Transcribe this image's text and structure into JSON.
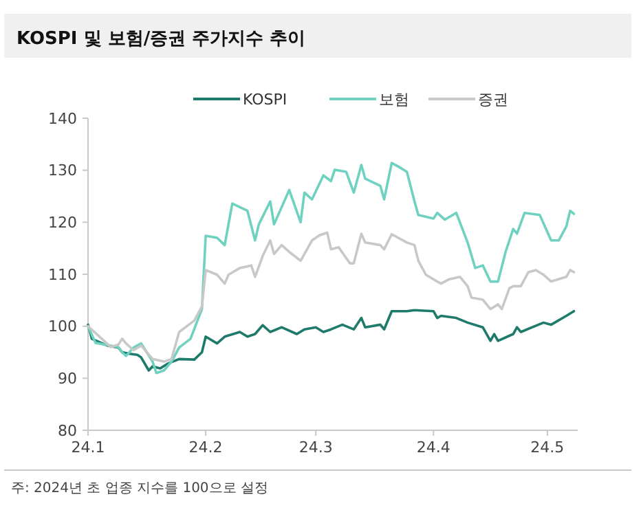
{
  "chart_data": {
    "type": "line",
    "title": "KOSPI 및 보험/증권 주가지수 추이",
    "annotations": [
      "주: 2024년 초 업종 지수를 100으로 설정"
    ],
    "xlim": [
      "2024-01-01",
      "2024-05-09"
    ],
    "xticks": [
      {
        "value": "2024-01-01",
        "label": "24.1"
      },
      {
        "value": "2024-02-01",
        "label": "24.2"
      },
      {
        "value": "2024-03-01",
        "label": "24.3"
      },
      {
        "value": "2024-04-01",
        "label": "24.4"
      },
      {
        "value": "2024-05-01",
        "label": "24.5"
      }
    ],
    "ylim": [
      80,
      140
    ],
    "yticks": [
      80,
      90,
      100,
      110,
      120,
      130,
      140
    ],
    "grid": false,
    "legend": "top",
    "marker": "none",
    "line_style": "solid",
    "series": [
      {
        "name": "KOSPI",
        "color": "#1e7a6a",
        "x": [
          "2024-01-01",
          "2024-01-02",
          "2024-01-06",
          "2024-01-09",
          "2024-01-10",
          "2024-01-12",
          "2024-01-14",
          "2024-01-15",
          "2024-01-17",
          "2024-01-18",
          "2024-01-20",
          "2024-01-22",
          "2024-01-25",
          "2024-01-29",
          "2024-01-31",
          "2024-02-01",
          "2024-02-04",
          "2024-02-06",
          "2024-02-10",
          "2024-02-12",
          "2024-02-14",
          "2024-02-16",
          "2024-02-18",
          "2024-02-21",
          "2024-02-25",
          "2024-02-27",
          "2024-03-01",
          "2024-03-03",
          "2024-03-05",
          "2024-03-08",
          "2024-03-11",
          "2024-03-13",
          "2024-03-14",
          "2024-03-18",
          "2024-03-19",
          "2024-03-21",
          "2024-03-25",
          "2024-03-27",
          "2024-04-01",
          "2024-04-02",
          "2024-04-03",
          "2024-04-07",
          "2024-04-10",
          "2024-04-14",
          "2024-04-16",
          "2024-04-17",
          "2024-04-18",
          "2024-04-22",
          "2024-04-23",
          "2024-04-24",
          "2024-04-27",
          "2024-04-30",
          "2024-05-02",
          "2024-05-06",
          "2024-05-08"
        ],
        "values": [
          100.3,
          97.6,
          96.3,
          95.9,
          95,
          94.7,
          94.5,
          94,
          91.5,
          92.3,
          91.9,
          92.8,
          93.7,
          93.6,
          95,
          98,
          96.7,
          98,
          98.9,
          98,
          98.5,
          100.2,
          98.9,
          99.8,
          98.5,
          99.4,
          99.8,
          98.9,
          99.4,
          100.3,
          99.4,
          101.6,
          99.8,
          100.3,
          99.4,
          102.9,
          102.9,
          103.1,
          102.9,
          101.6,
          102,
          101.6,
          100.7,
          99.8,
          97.2,
          98.5,
          97.2,
          98.5,
          99.8,
          98.9,
          99.8,
          100.7,
          100.3,
          102,
          102.9
        ]
      },
      {
        "name": "보험",
        "color": "#6fd1bf",
        "x": [
          "2024-01-01",
          "2024-01-03",
          "2024-01-09",
          "2024-01-10",
          "2024-01-11",
          "2024-01-13",
          "2024-01-15",
          "2024-01-18",
          "2024-01-19",
          "2024-01-21",
          "2024-01-23",
          "2024-01-25",
          "2024-01-28",
          "2024-01-31",
          "2024-02-01",
          "2024-02-04",
          "2024-02-06",
          "2024-02-08",
          "2024-02-12",
          "2024-02-14",
          "2024-02-15",
          "2024-02-18",
          "2024-02-19",
          "2024-02-23",
          "2024-02-26",
          "2024-02-27",
          "2024-02-29",
          "2024-03-03",
          "2024-03-05",
          "2024-03-06",
          "2024-03-09",
          "2024-03-11",
          "2024-03-13",
          "2024-03-14",
          "2024-03-18",
          "2024-03-19",
          "2024-03-21",
          "2024-03-23",
          "2024-03-25",
          "2024-03-27",
          "2024-03-28",
          "2024-04-01",
          "2024-04-02",
          "2024-04-04",
          "2024-04-07",
          "2024-04-10",
          "2024-04-12",
          "2024-04-14",
          "2024-04-16",
          "2024-04-18",
          "2024-04-20",
          "2024-04-22",
          "2024-04-23",
          "2024-04-25",
          "2024-04-29",
          "2024-05-02",
          "2024-05-04",
          "2024-05-06",
          "2024-05-07",
          "2024-05-08"
        ],
        "values": [
          100,
          96.8,
          96,
          95,
          94.3,
          95.9,
          96.7,
          93.2,
          91,
          91.5,
          93.2,
          95.9,
          97.6,
          103.3,
          117.4,
          117,
          115.6,
          123.6,
          122.2,
          116.5,
          119.6,
          124,
          119.6,
          126.2,
          120,
          125.7,
          124.4,
          129,
          127.9,
          130.1,
          129.7,
          125.7,
          131,
          128.4,
          127,
          124.4,
          131.4,
          130.6,
          129.7,
          124,
          121.4,
          120.7,
          121.8,
          120.5,
          121.8,
          116.1,
          111.2,
          111.7,
          108.6,
          108.6,
          114.3,
          118.7,
          117.8,
          121.8,
          121.4,
          116.5,
          116.5,
          119.2,
          122.2,
          121.6
        ]
      },
      {
        "name": "증권",
        "color": "#c8c8c8",
        "x": [
          "2024-01-01",
          "2024-01-07",
          "2024-01-09",
          "2024-01-10",
          "2024-01-11",
          "2024-01-13",
          "2024-01-15",
          "2024-01-18",
          "2024-01-21",
          "2024-01-23",
          "2024-01-25",
          "2024-01-29",
          "2024-01-31",
          "2024-02-01",
          "2024-02-04",
          "2024-02-06",
          "2024-02-07",
          "2024-02-10",
          "2024-02-13",
          "2024-02-14",
          "2024-02-16",
          "2024-02-18",
          "2024-02-19",
          "2024-02-21",
          "2024-02-23",
          "2024-02-26",
          "2024-02-29",
          "2024-03-02",
          "2024-03-04",
          "2024-03-05",
          "2024-03-07",
          "2024-03-10",
          "2024-03-11",
          "2024-03-13",
          "2024-03-14",
          "2024-03-18",
          "2024-03-19",
          "2024-03-21",
          "2024-03-25",
          "2024-03-27",
          "2024-03-28",
          "2024-03-30",
          "2024-04-02",
          "2024-04-03",
          "2024-04-05",
          "2024-04-08",
          "2024-04-10",
          "2024-04-11",
          "2024-04-14",
          "2024-04-16",
          "2024-04-18",
          "2024-04-19",
          "2024-04-21",
          "2024-04-22",
          "2024-04-24",
          "2024-04-26",
          "2024-04-28",
          "2024-04-30",
          "2024-05-02",
          "2024-05-06",
          "2024-05-07",
          "2024-05-08"
        ],
        "values": [
          100,
          96,
          96.5,
          97.6,
          96.7,
          95.4,
          96.3,
          93.7,
          93.2,
          93.7,
          98.9,
          101.1,
          103.8,
          110.8,
          109.9,
          108.2,
          109.9,
          111.2,
          111.7,
          109.5,
          113.5,
          116.5,
          113.9,
          115.6,
          114.3,
          112.6,
          116.5,
          117.5,
          118,
          114.8,
          115.2,
          112.1,
          112.1,
          117.8,
          116.1,
          115.6,
          114.8,
          117.7,
          116.1,
          115.6,
          112.6,
          109.9,
          108.6,
          108.2,
          109,
          109.5,
          107.7,
          105.5,
          105.1,
          103.3,
          104.2,
          103.3,
          107.3,
          107.7,
          107.7,
          110.4,
          110.8,
          109.9,
          108.6,
          109.5,
          110.8,
          110.4
        ]
      }
    ]
  }
}
